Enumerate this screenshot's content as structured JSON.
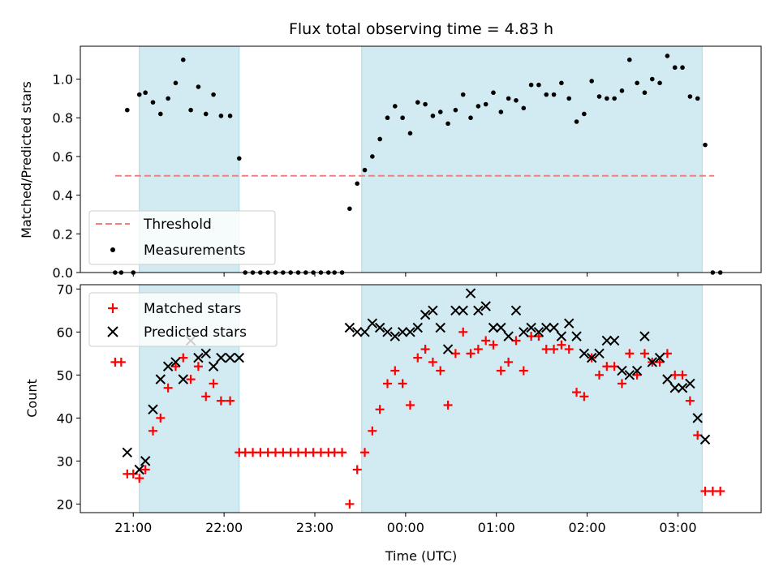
{
  "colors": {
    "observing_band": "#add8e6",
    "threshold": "#f08080",
    "measurements": "#000000",
    "matched": "#ff0000",
    "predicted": "#000000"
  },
  "chart_data": [
    {
      "type": "scatter",
      "title": "Flux total observing time = 4.83 h",
      "xlabel": "",
      "ylabel": "Matched/Predicted stars",
      "ylim": [
        0,
        1.17
      ],
      "yticks": [
        "0.0",
        "0.2",
        "0.4",
        "0.6",
        "0.8",
        "1.0"
      ],
      "legend": {
        "position": "lower-left",
        "entries": [
          "Threshold",
          "Measurements"
        ]
      },
      "observing_windows": [
        [
          "21:04",
          "22:10"
        ],
        [
          "23:31",
          "03:16"
        ]
      ],
      "threshold": {
        "name": "Threshold",
        "y": 0.5,
        "x_range": [
          "20:48",
          "03:24"
        ]
      },
      "series": [
        {
          "name": "Measurements",
          "marker": "dot",
          "points": [
            [
              "20:48",
              0.0
            ],
            [
              "20:52",
              0.0
            ],
            [
              "20:56",
              0.84
            ],
            [
              "21:00",
              0.0
            ],
            [
              "21:04",
              0.92
            ],
            [
              "21:08",
              0.93
            ],
            [
              "21:13",
              0.88
            ],
            [
              "21:18",
              0.82
            ],
            [
              "21:23",
              0.9
            ],
            [
              "21:28",
              0.98
            ],
            [
              "21:33",
              1.1
            ],
            [
              "21:38",
              0.84
            ],
            [
              "21:43",
              0.96
            ],
            [
              "21:48",
              0.82
            ],
            [
              "21:53",
              0.92
            ],
            [
              "21:58",
              0.81
            ],
            [
              "22:04",
              0.81
            ],
            [
              "22:10",
              0.59
            ],
            [
              "22:14",
              0.0
            ],
            [
              "22:19",
              0.0
            ],
            [
              "22:24",
              0.0
            ],
            [
              "22:29",
              0.0
            ],
            [
              "22:34",
              0.0
            ],
            [
              "22:39",
              0.0
            ],
            [
              "22:44",
              0.0
            ],
            [
              "22:49",
              0.0
            ],
            [
              "22:54",
              0.0
            ],
            [
              "22:59",
              0.0
            ],
            [
              "23:04",
              0.0
            ],
            [
              "23:09",
              0.0
            ],
            [
              "23:13",
              0.0
            ],
            [
              "23:18",
              0.0
            ],
            [
              "23:23",
              0.33
            ],
            [
              "23:28",
              0.46
            ],
            [
              "23:33",
              0.53
            ],
            [
              "23:38",
              0.6
            ],
            [
              "23:43",
              0.69
            ],
            [
              "23:48",
              0.8
            ],
            [
              "23:53",
              0.86
            ],
            [
              "23:58",
              0.8
            ],
            [
              "00:03",
              0.72
            ],
            [
              "00:08",
              0.88
            ],
            [
              "00:13",
              0.87
            ],
            [
              "00:18",
              0.81
            ],
            [
              "00:23",
              0.83
            ],
            [
              "00:28",
              0.77
            ],
            [
              "00:33",
              0.84
            ],
            [
              "00:38",
              0.92
            ],
            [
              "00:43",
              0.8
            ],
            [
              "00:48",
              0.86
            ],
            [
              "00:53",
              0.87
            ],
            [
              "00:58",
              0.93
            ],
            [
              "01:03",
              0.83
            ],
            [
              "01:08",
              0.9
            ],
            [
              "01:13",
              0.89
            ],
            [
              "01:18",
              0.85
            ],
            [
              "01:23",
              0.97
            ],
            [
              "01:28",
              0.97
            ],
            [
              "01:33",
              0.92
            ],
            [
              "01:38",
              0.92
            ],
            [
              "01:43",
              0.98
            ],
            [
              "01:48",
              0.9
            ],
            [
              "01:53",
              0.78
            ],
            [
              "01:58",
              0.82
            ],
            [
              "02:03",
              0.99
            ],
            [
              "02:08",
              0.91
            ],
            [
              "02:13",
              0.9
            ],
            [
              "02:18",
              0.9
            ],
            [
              "02:23",
              0.94
            ],
            [
              "02:28",
              1.1
            ],
            [
              "02:33",
              0.98
            ],
            [
              "02:38",
              0.93
            ],
            [
              "02:43",
              1.0
            ],
            [
              "02:48",
              0.98
            ],
            [
              "02:53",
              1.12
            ],
            [
              "02:58",
              1.06
            ],
            [
              "03:03",
              1.06
            ],
            [
              "03:08",
              0.91
            ],
            [
              "03:13",
              0.9
            ],
            [
              "03:18",
              0.66
            ],
            [
              "03:23",
              0.0
            ],
            [
              "03:28",
              0.0
            ]
          ]
        }
      ]
    },
    {
      "type": "scatter",
      "title": "",
      "xlabel": "Time (UTC)",
      "ylabel": "Count",
      "ylim": [
        18,
        71
      ],
      "yticks": [
        "20",
        "30",
        "40",
        "50",
        "60",
        "70"
      ],
      "xticks": [
        "21:00",
        "22:00",
        "23:00",
        "00:00",
        "01:00",
        "02:00",
        "03:00"
      ],
      "xlim": [
        "20:25",
        "03:55"
      ],
      "legend": {
        "position": "upper-left",
        "entries": [
          "Matched stars",
          "Predicted stars"
        ]
      },
      "observing_windows": [
        [
          "21:04",
          "22:10"
        ],
        [
          "23:31",
          "03:16"
        ]
      ],
      "series": [
        {
          "name": "Matched stars",
          "marker": "plus",
          "points": [
            [
              "20:48",
              53
            ],
            [
              "20:52",
              53
            ],
            [
              "20:56",
              27
            ],
            [
              "21:00",
              27
            ],
            [
              "21:04",
              26
            ],
            [
              "21:08",
              28
            ],
            [
              "21:13",
              37
            ],
            [
              "21:18",
              40
            ],
            [
              "21:23",
              47
            ],
            [
              "21:28",
              52
            ],
            [
              "21:33",
              54
            ],
            [
              "21:38",
              49
            ],
            [
              "21:43",
              52
            ],
            [
              "21:48",
              45
            ],
            [
              "21:53",
              48
            ],
            [
              "21:58",
              44
            ],
            [
              "22:04",
              44
            ],
            [
              "22:10",
              32
            ],
            [
              "22:14",
              32
            ],
            [
              "22:19",
              32
            ],
            [
              "22:24",
              32
            ],
            [
              "22:29",
              32
            ],
            [
              "22:34",
              32
            ],
            [
              "22:39",
              32
            ],
            [
              "22:44",
              32
            ],
            [
              "22:49",
              32
            ],
            [
              "22:54",
              32
            ],
            [
              "22:59",
              32
            ],
            [
              "23:04",
              32
            ],
            [
              "23:09",
              32
            ],
            [
              "23:13",
              32
            ],
            [
              "23:18",
              32
            ],
            [
              "23:23",
              20
            ],
            [
              "23:28",
              28
            ],
            [
              "23:33",
              32
            ],
            [
              "23:38",
              37
            ],
            [
              "23:43",
              42
            ],
            [
              "23:48",
              48
            ],
            [
              "23:53",
              51
            ],
            [
              "23:58",
              48
            ],
            [
              "00:03",
              43
            ],
            [
              "00:08",
              54
            ],
            [
              "00:13",
              56
            ],
            [
              "00:18",
              53
            ],
            [
              "00:23",
              51
            ],
            [
              "00:28",
              43
            ],
            [
              "00:33",
              55
            ],
            [
              "00:38",
              60
            ],
            [
              "00:43",
              55
            ],
            [
              "00:48",
              56
            ],
            [
              "00:53",
              58
            ],
            [
              "00:58",
              57
            ],
            [
              "01:03",
              51
            ],
            [
              "01:08",
              53
            ],
            [
              "01:13",
              58
            ],
            [
              "01:18",
              51
            ],
            [
              "01:23",
              59
            ],
            [
              "01:28",
              59
            ],
            [
              "01:33",
              56
            ],
            [
              "01:38",
              56
            ],
            [
              "01:43",
              57
            ],
            [
              "01:48",
              56
            ],
            [
              "01:53",
              46
            ],
            [
              "01:58",
              45
            ],
            [
              "02:03",
              54
            ],
            [
              "02:08",
              50
            ],
            [
              "02:13",
              52
            ],
            [
              "02:18",
              52
            ],
            [
              "02:23",
              48
            ],
            [
              "02:28",
              55
            ],
            [
              "02:33",
              50
            ],
            [
              "02:38",
              55
            ],
            [
              "02:43",
              53
            ],
            [
              "02:48",
              53
            ],
            [
              "02:53",
              55
            ],
            [
              "02:58",
              50
            ],
            [
              "03:03",
              50
            ],
            [
              "03:08",
              44
            ],
            [
              "03:13",
              36
            ],
            [
              "03:18",
              23
            ],
            [
              "03:23",
              23
            ],
            [
              "03:28",
              23
            ]
          ]
        },
        {
          "name": "Predicted stars",
          "marker": "x",
          "points": [
            [
              "20:56",
              32
            ],
            [
              "21:04",
              28
            ],
            [
              "21:08",
              30
            ],
            [
              "21:13",
              42
            ],
            [
              "21:18",
              49
            ],
            [
              "21:23",
              52
            ],
            [
              "21:28",
              53
            ],
            [
              "21:33",
              49
            ],
            [
              "21:38",
              58
            ],
            [
              "21:43",
              54
            ],
            [
              "21:48",
              55
            ],
            [
              "21:53",
              52
            ],
            [
              "21:58",
              54
            ],
            [
              "22:04",
              54
            ],
            [
              "22:10",
              54
            ],
            [
              "23:23",
              61
            ],
            [
              "23:28",
              60
            ],
            [
              "23:33",
              60
            ],
            [
              "23:38",
              62
            ],
            [
              "23:43",
              61
            ],
            [
              "23:48",
              60
            ],
            [
              "23:53",
              59
            ],
            [
              "23:58",
              60
            ],
            [
              "00:03",
              60
            ],
            [
              "00:08",
              61
            ],
            [
              "00:13",
              64
            ],
            [
              "00:18",
              65
            ],
            [
              "00:23",
              61
            ],
            [
              "00:28",
              56
            ],
            [
              "00:33",
              65
            ],
            [
              "00:38",
              65
            ],
            [
              "00:43",
              69
            ],
            [
              "00:48",
              65
            ],
            [
              "00:53",
              66
            ],
            [
              "00:58",
              61
            ],
            [
              "01:03",
              61
            ],
            [
              "01:08",
              59
            ],
            [
              "01:13",
              65
            ],
            [
              "01:18",
              60
            ],
            [
              "01:23",
              61
            ],
            [
              "01:28",
              60
            ],
            [
              "01:33",
              61
            ],
            [
              "01:38",
              61
            ],
            [
              "01:43",
              59
            ],
            [
              "01:48",
              62
            ],
            [
              "01:53",
              59
            ],
            [
              "01:58",
              55
            ],
            [
              "02:03",
              54
            ],
            [
              "02:08",
              55
            ],
            [
              "02:13",
              58
            ],
            [
              "02:18",
              58
            ],
            [
              "02:23",
              51
            ],
            [
              "02:28",
              50
            ],
            [
              "02:33",
              51
            ],
            [
              "02:38",
              59
            ],
            [
              "02:43",
              53
            ],
            [
              "02:48",
              54
            ],
            [
              "02:53",
              49
            ],
            [
              "02:58",
              47
            ],
            [
              "03:03",
              47
            ],
            [
              "03:08",
              48
            ],
            [
              "03:13",
              40
            ],
            [
              "03:18",
              35
            ]
          ]
        }
      ]
    }
  ]
}
